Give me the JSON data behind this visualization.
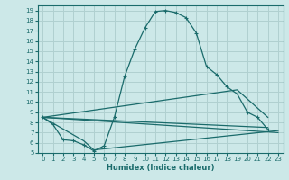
{
  "xlabel": "Humidex (Indice chaleur)",
  "bg_color": "#cce8e8",
  "line_color": "#1a6b6b",
  "grid_color": "#b0d0d0",
  "xlim": [
    -0.5,
    23.5
  ],
  "ylim": [
    5,
    19.5
  ],
  "yticks": [
    5,
    6,
    7,
    8,
    9,
    10,
    11,
    12,
    13,
    14,
    15,
    16,
    17,
    18,
    19
  ],
  "xticks": [
    0,
    1,
    2,
    3,
    4,
    5,
    6,
    7,
    8,
    9,
    10,
    11,
    12,
    13,
    14,
    15,
    16,
    17,
    18,
    19,
    20,
    21,
    22,
    23
  ],
  "main_line": {
    "x": [
      0,
      1,
      2,
      3,
      4,
      5,
      6,
      7,
      8,
      9,
      10,
      11,
      12,
      13,
      14,
      15,
      16,
      17,
      18,
      19,
      20,
      21,
      22
    ],
    "y": [
      8.5,
      7.8,
      6.3,
      6.2,
      5.8,
      5.2,
      5.7,
      8.5,
      12.5,
      15.2,
      17.3,
      18.9,
      19.0,
      18.8,
      18.3,
      16.8,
      13.5,
      12.7,
      11.5,
      10.8,
      9.0,
      8.5,
      7.3
    ]
  },
  "line1": {
    "x": [
      0,
      19,
      22
    ],
    "y": [
      8.5,
      11.2,
      8.5
    ]
  },
  "line2": {
    "x": [
      0,
      22
    ],
    "y": [
      8.5,
      7.5
    ]
  },
  "line3": {
    "x": [
      0,
      4,
      5,
      23
    ],
    "y": [
      8.5,
      6.2,
      5.3,
      7.2
    ]
  },
  "line4": {
    "x": [
      0,
      23
    ],
    "y": [
      8.5,
      7.0
    ]
  }
}
